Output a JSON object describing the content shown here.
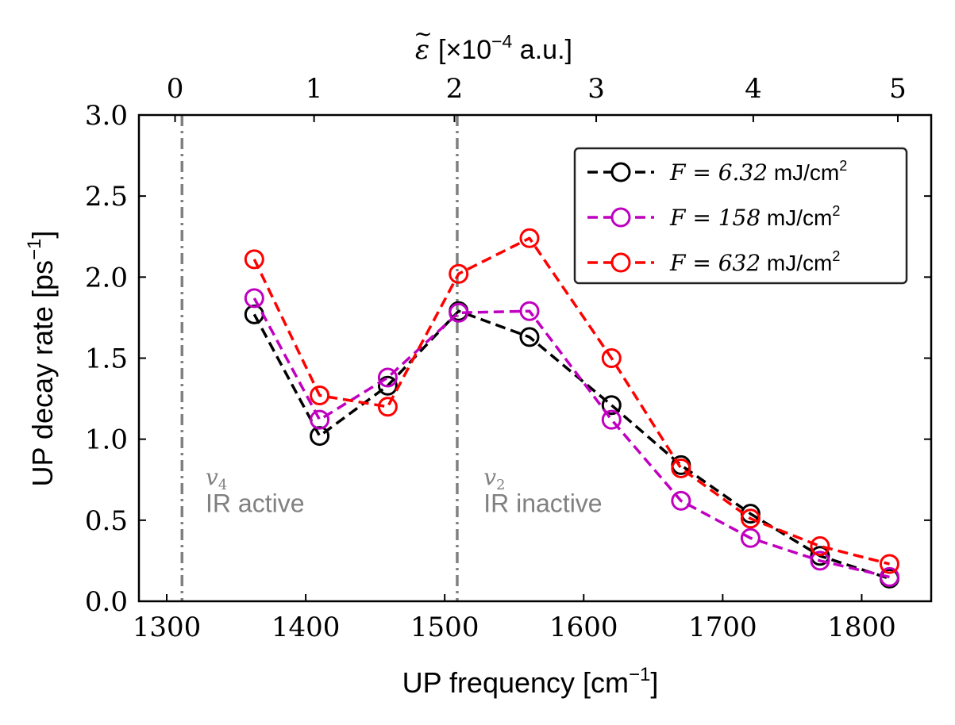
{
  "chart_data": {
    "type": "line",
    "xlabel_main": "UP frequency [cm",
    "xlabel_sup": "−1",
    "xlabel_end": "]",
    "ylabel_main": "UP decay rate [ps",
    "ylabel_sup": "−1",
    "ylabel_end": "]",
    "top_axis": {
      "label_eps": "ε",
      "label_tilde": "~",
      "label_pre": " [×10",
      "label_sup": "−4",
      "label_post": " a.u.]",
      "ticks": [
        {
          "label": "0",
          "at": 1306
        },
        {
          "label": "1",
          "at": 1406
        },
        {
          "label": "2",
          "at": 1507
        },
        {
          "label": "3",
          "at": 1609
        },
        {
          "label": "4",
          "at": 1722
        },
        {
          "label": "5",
          "at": 1826
        }
      ]
    },
    "xlim": [
      1280,
      1850
    ],
    "ylim": [
      0.0,
      3.0
    ],
    "xticks": [
      1300,
      1400,
      1500,
      1600,
      1700,
      1800
    ],
    "xtick_labels": [
      "1300",
      "1400",
      "1500",
      "1600",
      "1700",
      "1800"
    ],
    "yticks": [
      0.0,
      0.5,
      1.0,
      1.5,
      2.0,
      2.5,
      3.0
    ],
    "ytick_labels": [
      "0.0",
      "0.5",
      "1.0",
      "1.5",
      "2.0",
      "2.5",
      "3.0"
    ],
    "vlines": [
      1311,
      1509
    ],
    "vline_color": "#808080",
    "annotations": [
      {
        "symbol": "v",
        "sub": "4",
        "text": "IR active",
        "x": 1328,
        "y_symbol": 0.72,
        "y_text": 0.55
      },
      {
        "symbol": "v",
        "sub": "2",
        "text": "IR inactive",
        "x": 1528,
        "y_symbol": 0.72,
        "y_text": 0.55
      }
    ],
    "annotation_color": "#808080",
    "legend_position": "top-right",
    "series": [
      {
        "label_math": "F = 6.32",
        "label_unit": " mJ/cm",
        "label_sup": "2",
        "color": "#000000",
        "x": [
          1363,
          1410,
          1459,
          1510,
          1561,
          1620,
          1670,
          1720,
          1770,
          1820
        ],
        "y": [
          1.77,
          1.02,
          1.33,
          1.79,
          1.63,
          1.21,
          0.84,
          0.54,
          0.28,
          0.14
        ]
      },
      {
        "label_math": "F = 158",
        "label_unit": " mJ/cm",
        "label_sup": "2",
        "color": "#c000c0",
        "x": [
          1363,
          1410,
          1459,
          1510,
          1561,
          1620,
          1670,
          1720,
          1770,
          1820
        ],
        "y": [
          1.87,
          1.12,
          1.38,
          1.78,
          1.79,
          1.12,
          0.62,
          0.39,
          0.25,
          0.15
        ]
      },
      {
        "label_math": "F = 632",
        "label_unit": " mJ/cm",
        "label_sup": "2",
        "color": "#ff0000",
        "x": [
          1363,
          1410,
          1459,
          1510,
          1561,
          1620,
          1670,
          1720,
          1770,
          1820
        ],
        "y": [
          2.11,
          1.27,
          1.2,
          2.02,
          2.24,
          1.5,
          0.82,
          0.51,
          0.34,
          0.23
        ]
      }
    ]
  }
}
